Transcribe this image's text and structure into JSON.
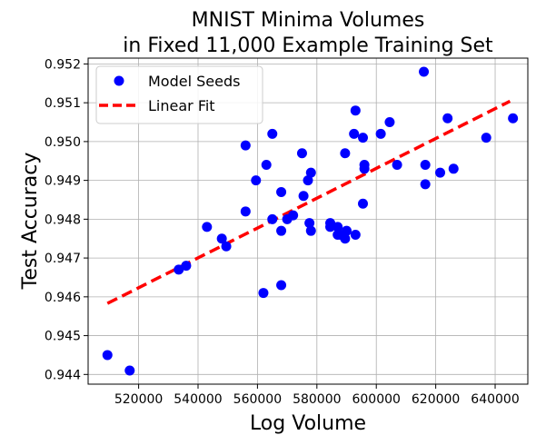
{
  "chart_data": {
    "type": "scatter",
    "title_lines": [
      "MNIST Minima Volumes",
      "in Fixed 11,000 Example Training Set"
    ],
    "xlabel": "Log Volume",
    "ylabel": "Test Accuracy",
    "xlim": [
      503000,
      651000
    ],
    "ylim": [
      0.94375,
      0.95215
    ],
    "x_ticks": [
      520000,
      540000,
      560000,
      580000,
      600000,
      620000,
      640000
    ],
    "x_tick_labels": [
      "520000",
      "540000",
      "560000",
      "580000",
      "600000",
      "620000",
      "640000"
    ],
    "y_ticks": [
      0.944,
      0.945,
      0.946,
      0.947,
      0.948,
      0.949,
      0.95,
      0.951,
      0.952
    ],
    "y_tick_labels": [
      "0.944",
      "0.945",
      "0.946",
      "0.947",
      "0.948",
      "0.949",
      "0.950",
      "0.951",
      "0.952"
    ],
    "grid": true,
    "legend_position": "top-left",
    "legend": [
      {
        "label": "Model Seeds",
        "kind": "marker"
      },
      {
        "label": "Linear Fit",
        "kind": "dashed-line"
      }
    ],
    "series": [
      {
        "name": "Model Seeds",
        "color": "#0000ff",
        "points": [
          [
            509500,
            0.9445
          ],
          [
            517000,
            0.9441
          ],
          [
            533500,
            0.9467
          ],
          [
            536000,
            0.9468
          ],
          [
            543000,
            0.9478
          ],
          [
            548000,
            0.9475
          ],
          [
            549500,
            0.9473
          ],
          [
            556000,
            0.9499
          ],
          [
            556000,
            0.9482
          ],
          [
            559500,
            0.949
          ],
          [
            562000,
            0.9461
          ],
          [
            563000,
            0.9494
          ],
          [
            565000,
            0.9502
          ],
          [
            565000,
            0.948
          ],
          [
            568000,
            0.9487
          ],
          [
            568000,
            0.9477
          ],
          [
            568000,
            0.9463
          ],
          [
            570000,
            0.948
          ],
          [
            572000,
            0.9481
          ],
          [
            575000,
            0.9497
          ],
          [
            575500,
            0.9486
          ],
          [
            577000,
            0.949
          ],
          [
            578000,
            0.9492
          ],
          [
            577500,
            0.9479
          ],
          [
            578000,
            0.9477
          ],
          [
            584500,
            0.9479
          ],
          [
            584500,
            0.9478
          ],
          [
            587000,
            0.9478
          ],
          [
            587000,
            0.9476
          ],
          [
            588000,
            0.9476
          ],
          [
            589500,
            0.9497
          ],
          [
            589500,
            0.9475
          ],
          [
            590000,
            0.9477
          ],
          [
            592500,
            0.9502
          ],
          [
            593000,
            0.9508
          ],
          [
            593000,
            0.9476
          ],
          [
            595500,
            0.9501
          ],
          [
            595500,
            0.9484
          ],
          [
            596000,
            0.9494
          ],
          [
            596000,
            0.9493
          ],
          [
            601500,
            0.9502
          ],
          [
            604500,
            0.9505
          ],
          [
            607000,
            0.9494
          ],
          [
            616000,
            0.9518
          ],
          [
            616500,
            0.9494
          ],
          [
            616500,
            0.9489
          ],
          [
            621500,
            0.9492
          ],
          [
            624000,
            0.9506
          ],
          [
            626000,
            0.9493
          ],
          [
            637000,
            0.9501
          ],
          [
            646000,
            0.9506
          ]
        ]
      },
      {
        "name": "Linear Fit",
        "color": "#ff0000",
        "line": [
          [
            509500,
            0.94583
          ],
          [
            645000,
            0.95104
          ]
        ]
      }
    ]
  }
}
